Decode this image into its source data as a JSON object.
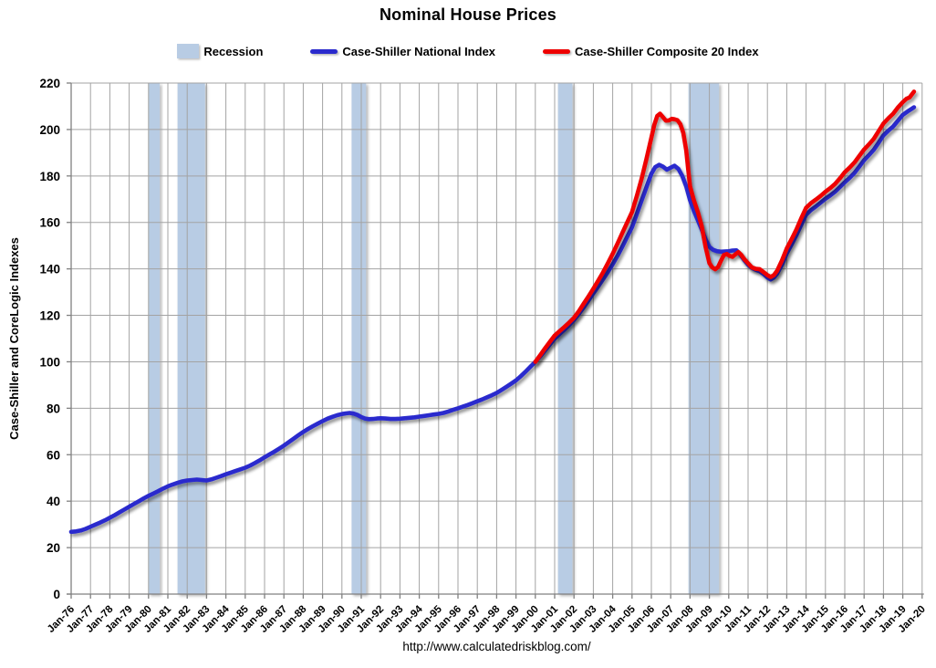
{
  "title": "Nominal House Prices",
  "legend": [
    {
      "label": "Recession",
      "type": "band",
      "color": "#B8CCE4"
    },
    {
      "label": "Case-Shiller National Index",
      "type": "line",
      "color": "#2A2ACD"
    },
    {
      "label": "Case-Shiller Composite 20 Index",
      "type": "line",
      "color": "#EE0000"
    }
  ],
  "footer": {
    "url": "http://www.calculatedriskblog.com/"
  },
  "colors": {
    "grid": "#A3A3A3",
    "axis": "#808080",
    "recession_band": "#B8CCE4",
    "national_line": "#2A2ACD",
    "composite_line": "#EE0000",
    "text": "#000000"
  },
  "chart_data": {
    "type": "line",
    "title": "Nominal House Prices",
    "xlabel": "",
    "ylabel": "Case-Shiller and CoreLogic Indexes",
    "ylim": [
      0,
      220
    ],
    "ytick_step": 20,
    "ytick_labels": [
      "0",
      "20",
      "40",
      "60",
      "80",
      "100",
      "120",
      "140",
      "160",
      "180",
      "200",
      "220"
    ],
    "x_range_years": [
      1976,
      2020
    ],
    "xtick_labels": [
      "Jan-76",
      "Jan-77",
      "Jan-78",
      "Jan-79",
      "Jan-80",
      "Jan-81",
      "Jan-82",
      "Jan-83",
      "Jan-84",
      "Jan-85",
      "Jan-86",
      "Jan-87",
      "Jan-88",
      "Jan-89",
      "Jan-90",
      "Jan-91",
      "Jan-92",
      "Jan-93",
      "Jan-94",
      "Jan-95",
      "Jan-96",
      "Jan-97",
      "Jan-98",
      "Jan-99",
      "Jan-00",
      "Jan-01",
      "Jan-02",
      "Jan-03",
      "Jan-04",
      "Jan-05",
      "Jan-06",
      "Jan-07",
      "Jan-08",
      "Jan-09",
      "Jan-10",
      "Jan-11",
      "Jan-12",
      "Jan-13",
      "Jan-14",
      "Jan-15",
      "Jan-16",
      "Jan-17",
      "Jan-18",
      "Jan-19",
      "Jan-20"
    ],
    "grid": true,
    "legend_position": "top",
    "recession_bands": [
      [
        1980.0,
        1980.58
      ],
      [
        1981.5,
        1982.92
      ],
      [
        1990.5,
        1991.25
      ],
      [
        2001.17,
        2001.92
      ],
      [
        2007.92,
        2009.5
      ]
    ],
    "series": [
      {
        "name": "Case-Shiller National Index",
        "color": "#2A2ACD",
        "points": [
          [
            1976.0,
            26.8
          ],
          [
            1976.25,
            27.0
          ],
          [
            1976.5,
            27.4
          ],
          [
            1976.75,
            28.1
          ],
          [
            1977.0,
            29.0
          ],
          [
            1977.25,
            29.9
          ],
          [
            1977.5,
            30.8
          ],
          [
            1977.75,
            31.8
          ],
          [
            1978.0,
            32.9
          ],
          [
            1978.25,
            34.0
          ],
          [
            1978.5,
            35.2
          ],
          [
            1978.75,
            36.4
          ],
          [
            1979.0,
            37.6
          ],
          [
            1979.25,
            38.8
          ],
          [
            1979.5,
            40.0
          ],
          [
            1979.75,
            41.2
          ],
          [
            1980.0,
            42.3
          ],
          [
            1980.25,
            43.3
          ],
          [
            1980.5,
            44.3
          ],
          [
            1980.75,
            45.4
          ],
          [
            1981.0,
            46.4
          ],
          [
            1981.25,
            47.2
          ],
          [
            1981.5,
            47.9
          ],
          [
            1981.75,
            48.5
          ],
          [
            1982.0,
            48.9
          ],
          [
            1982.25,
            49.1
          ],
          [
            1982.5,
            49.3
          ],
          [
            1982.75,
            49.1
          ],
          [
            1983.0,
            48.9
          ],
          [
            1983.25,
            49.4
          ],
          [
            1983.5,
            50.1
          ],
          [
            1983.75,
            50.8
          ],
          [
            1984.0,
            51.6
          ],
          [
            1984.25,
            52.3
          ],
          [
            1984.5,
            53.0
          ],
          [
            1984.75,
            53.7
          ],
          [
            1985.0,
            54.4
          ],
          [
            1985.25,
            55.3
          ],
          [
            1985.5,
            56.4
          ],
          [
            1985.75,
            57.6
          ],
          [
            1986.0,
            58.9
          ],
          [
            1986.25,
            60.1
          ],
          [
            1986.5,
            61.3
          ],
          [
            1986.75,
            62.6
          ],
          [
            1987.0,
            63.9
          ],
          [
            1987.25,
            65.4
          ],
          [
            1987.5,
            66.9
          ],
          [
            1987.75,
            68.4
          ],
          [
            1988.0,
            69.8
          ],
          [
            1988.25,
            71.1
          ],
          [
            1988.5,
            72.3
          ],
          [
            1988.75,
            73.4
          ],
          [
            1989.0,
            74.5
          ],
          [
            1989.25,
            75.5
          ],
          [
            1989.5,
            76.3
          ],
          [
            1989.75,
            77.0
          ],
          [
            1990.0,
            77.5
          ],
          [
            1990.2,
            77.8
          ],
          [
            1990.4,
            78.0
          ],
          [
            1990.6,
            77.7
          ],
          [
            1990.8,
            77.1
          ],
          [
            1991.0,
            76.2
          ],
          [
            1991.2,
            75.6
          ],
          [
            1991.4,
            75.3
          ],
          [
            1991.6,
            75.4
          ],
          [
            1991.8,
            75.6
          ],
          [
            1992.0,
            75.7
          ],
          [
            1992.25,
            75.6
          ],
          [
            1992.5,
            75.4
          ],
          [
            1992.75,
            75.4
          ],
          [
            1993.0,
            75.5
          ],
          [
            1993.25,
            75.7
          ],
          [
            1993.5,
            75.9
          ],
          [
            1993.75,
            76.1
          ],
          [
            1994.0,
            76.4
          ],
          [
            1994.25,
            76.7
          ],
          [
            1994.5,
            77.0
          ],
          [
            1994.75,
            77.3
          ],
          [
            1995.0,
            77.6
          ],
          [
            1995.25,
            78.0
          ],
          [
            1995.5,
            78.6
          ],
          [
            1995.75,
            79.3
          ],
          [
            1996.0,
            80.0
          ],
          [
            1996.25,
            80.7
          ],
          [
            1996.5,
            81.4
          ],
          [
            1996.75,
            82.2
          ],
          [
            1997.0,
            83.0
          ],
          [
            1997.25,
            83.8
          ],
          [
            1997.5,
            84.7
          ],
          [
            1997.75,
            85.6
          ],
          [
            1998.0,
            86.6
          ],
          [
            1998.25,
            87.9
          ],
          [
            1998.5,
            89.2
          ],
          [
            1998.75,
            90.6
          ],
          [
            1999.0,
            92.0
          ],
          [
            1999.25,
            93.8
          ],
          [
            1999.5,
            95.8
          ],
          [
            1999.75,
            97.9
          ],
          [
            2000.0,
            100.0
          ],
          [
            2000.25,
            102.3
          ],
          [
            2000.5,
            104.8
          ],
          [
            2000.75,
            107.4
          ],
          [
            2001.0,
            110.0
          ],
          [
            2001.25,
            111.9
          ],
          [
            2001.5,
            113.8
          ],
          [
            2001.75,
            115.8
          ],
          [
            2002.0,
            118.0
          ],
          [
            2002.25,
            120.6
          ],
          [
            2002.5,
            123.4
          ],
          [
            2002.75,
            126.4
          ],
          [
            2003.0,
            129.5
          ],
          [
            2003.25,
            132.4
          ],
          [
            2003.5,
            135.5
          ],
          [
            2003.75,
            138.6
          ],
          [
            2004.0,
            142.0
          ],
          [
            2004.25,
            145.6
          ],
          [
            2004.5,
            149.6
          ],
          [
            2004.75,
            153.8
          ],
          [
            2005.0,
            158.0
          ],
          [
            2005.25,
            163.7
          ],
          [
            2005.5,
            169.5
          ],
          [
            2005.75,
            175.3
          ],
          [
            2006.0,
            181.0
          ],
          [
            2006.2,
            183.8
          ],
          [
            2006.4,
            184.8
          ],
          [
            2006.6,
            184.0
          ],
          [
            2006.8,
            182.7
          ],
          [
            2007.0,
            183.6
          ],
          [
            2007.2,
            184.4
          ],
          [
            2007.4,
            183.0
          ],
          [
            2007.6,
            180.0
          ],
          [
            2007.8,
            175.5
          ],
          [
            2008.0,
            169.5
          ],
          [
            2008.2,
            165.0
          ],
          [
            2008.4,
            161.0
          ],
          [
            2008.6,
            157.0
          ],
          [
            2008.8,
            152.8
          ],
          [
            2009.0,
            149.5
          ],
          [
            2009.2,
            148.2
          ],
          [
            2009.4,
            147.6
          ],
          [
            2009.6,
            147.4
          ],
          [
            2009.8,
            147.5
          ],
          [
            2010.0,
            147.6
          ],
          [
            2010.2,
            147.9
          ],
          [
            2010.4,
            148.0
          ],
          [
            2010.6,
            146.2
          ],
          [
            2010.8,
            143.8
          ],
          [
            2011.0,
            141.8
          ],
          [
            2011.2,
            140.4
          ],
          [
            2011.4,
            139.6
          ],
          [
            2011.6,
            139.0
          ],
          [
            2011.8,
            137.8
          ],
          [
            2012.0,
            136.3
          ],
          [
            2012.17,
            135.4
          ],
          [
            2012.33,
            136.2
          ],
          [
            2012.5,
            137.9
          ],
          [
            2012.75,
            141.8
          ],
          [
            2013.0,
            146.6
          ],
          [
            2013.25,
            150.5
          ],
          [
            2013.5,
            154.5
          ],
          [
            2013.75,
            159.0
          ],
          [
            2014.0,
            163.3
          ],
          [
            2014.25,
            165.3
          ],
          [
            2014.5,
            166.8
          ],
          [
            2014.75,
            168.5
          ],
          [
            2015.0,
            170.2
          ],
          [
            2015.25,
            171.6
          ],
          [
            2015.5,
            173.2
          ],
          [
            2015.75,
            175.2
          ],
          [
            2016.0,
            177.3
          ],
          [
            2016.25,
            179.2
          ],
          [
            2016.5,
            181.3
          ],
          [
            2016.75,
            184.0
          ],
          [
            2017.0,
            186.8
          ],
          [
            2017.25,
            189.0
          ],
          [
            2017.5,
            191.3
          ],
          [
            2017.75,
            194.3
          ],
          [
            2018.0,
            197.5
          ],
          [
            2018.25,
            199.5
          ],
          [
            2018.5,
            201.3
          ],
          [
            2018.75,
            203.8
          ],
          [
            2019.0,
            206.3
          ],
          [
            2019.25,
            207.8
          ],
          [
            2019.42,
            208.7
          ],
          [
            2019.58,
            209.6
          ]
        ]
      },
      {
        "name": "Case-Shiller Composite 20 Index",
        "color": "#EE0000",
        "points": [
          [
            2000.0,
            100.0
          ],
          [
            2000.25,
            102.8
          ],
          [
            2000.5,
            105.8
          ],
          [
            2000.75,
            108.6
          ],
          [
            2001.0,
            111.3
          ],
          [
            2001.25,
            113.2
          ],
          [
            2001.5,
            115.0
          ],
          [
            2001.75,
            116.9
          ],
          [
            2002.0,
            119.0
          ],
          [
            2002.25,
            121.8
          ],
          [
            2002.5,
            125.0
          ],
          [
            2002.75,
            128.2
          ],
          [
            2003.0,
            131.5
          ],
          [
            2003.25,
            134.9
          ],
          [
            2003.5,
            138.5
          ],
          [
            2003.75,
            142.4
          ],
          [
            2004.0,
            146.5
          ],
          [
            2004.25,
            150.9
          ],
          [
            2004.5,
            155.5
          ],
          [
            2004.75,
            160.0
          ],
          [
            2005.0,
            164.5
          ],
          [
            2005.25,
            171.5
          ],
          [
            2005.5,
            179.0
          ],
          [
            2005.75,
            187.5
          ],
          [
            2006.0,
            196.5
          ],
          [
            2006.15,
            202.0
          ],
          [
            2006.3,
            205.8
          ],
          [
            2006.45,
            206.8
          ],
          [
            2006.6,
            205.3
          ],
          [
            2006.75,
            203.8
          ],
          [
            2006.9,
            203.9
          ],
          [
            2007.05,
            204.6
          ],
          [
            2007.2,
            204.4
          ],
          [
            2007.35,
            204.0
          ],
          [
            2007.5,
            202.3
          ],
          [
            2007.65,
            198.5
          ],
          [
            2007.8,
            191.0
          ],
          [
            2007.9,
            183.0
          ],
          [
            2008.0,
            175.5
          ],
          [
            2008.2,
            169.5
          ],
          [
            2008.4,
            164.5
          ],
          [
            2008.6,
            158.5
          ],
          [
            2008.8,
            149.5
          ],
          [
            2009.0,
            142.5
          ],
          [
            2009.15,
            140.6
          ],
          [
            2009.3,
            139.8
          ],
          [
            2009.45,
            140.8
          ],
          [
            2009.6,
            143.5
          ],
          [
            2009.75,
            146.0
          ],
          [
            2009.9,
            146.4
          ],
          [
            2010.05,
            145.6
          ],
          [
            2010.2,
            145.2
          ],
          [
            2010.35,
            146.3
          ],
          [
            2010.5,
            147.2
          ],
          [
            2010.65,
            146.0
          ],
          [
            2010.8,
            144.2
          ],
          [
            2011.0,
            142.4
          ],
          [
            2011.2,
            140.6
          ],
          [
            2011.4,
            140.0
          ],
          [
            2011.6,
            139.9
          ],
          [
            2011.8,
            138.6
          ],
          [
            2012.0,
            137.3
          ],
          [
            2012.17,
            136.5
          ],
          [
            2012.33,
            137.3
          ],
          [
            2012.5,
            139.2
          ],
          [
            2012.75,
            143.6
          ],
          [
            2013.0,
            148.8
          ],
          [
            2013.25,
            152.8
          ],
          [
            2013.5,
            157.0
          ],
          [
            2013.75,
            161.8
          ],
          [
            2014.0,
            166.3
          ],
          [
            2014.25,
            168.3
          ],
          [
            2014.5,
            169.8
          ],
          [
            2014.75,
            171.4
          ],
          [
            2015.0,
            173.2
          ],
          [
            2015.25,
            174.8
          ],
          [
            2015.5,
            176.6
          ],
          [
            2015.75,
            179.0
          ],
          [
            2016.0,
            181.6
          ],
          [
            2016.25,
            183.6
          ],
          [
            2016.5,
            185.8
          ],
          [
            2016.75,
            188.6
          ],
          [
            2017.0,
            191.4
          ],
          [
            2017.25,
            193.6
          ],
          [
            2017.5,
            196.0
          ],
          [
            2017.75,
            199.3
          ],
          [
            2018.0,
            202.6
          ],
          [
            2018.25,
            204.8
          ],
          [
            2018.5,
            206.8
          ],
          [
            2018.75,
            209.5
          ],
          [
            2019.0,
            211.8
          ],
          [
            2019.2,
            213.3
          ],
          [
            2019.35,
            213.8
          ],
          [
            2019.58,
            216.3
          ]
        ]
      }
    ]
  }
}
